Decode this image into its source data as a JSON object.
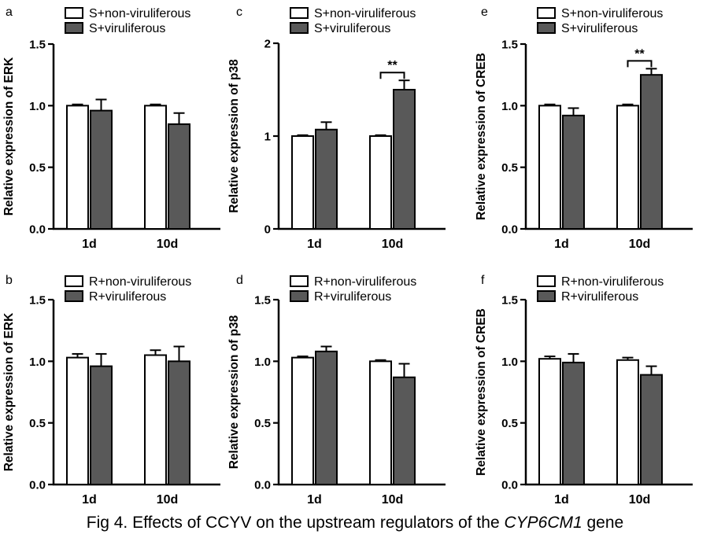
{
  "caption": {
    "prefix": "Fig 4. Effects of CCYV on the upstream regulators of the ",
    "gene": "CYP6CM1",
    "suffix": " gene"
  },
  "colors": {
    "white_bar": "#ffffff",
    "dark_bar": "#595959",
    "axis": "#000000"
  },
  "chart_data": [
    {
      "panel": "a",
      "type": "bar",
      "ylabel": "Relative expression of ERK",
      "ylim": [
        0,
        1.5
      ],
      "yticks": [
        "0.0",
        "0.5",
        "1.0",
        "1.5"
      ],
      "ytick_values": [
        0,
        0.5,
        1.0,
        1.5
      ],
      "categories": [
        "1d",
        "10d"
      ],
      "series": [
        {
          "name": "S+non-viruliferous",
          "style": "white",
          "values": [
            1.0,
            1.0
          ],
          "errors": [
            0.01,
            0.01
          ]
        },
        {
          "name": "S+viruliferous",
          "style": "dark",
          "values": [
            0.96,
            0.85
          ],
          "errors": [
            0.09,
            0.09
          ]
        }
      ],
      "significance": []
    },
    {
      "panel": "c",
      "type": "bar",
      "ylabel": "Relative expression of p38",
      "ylim": [
        0,
        2
      ],
      "yticks": [
        "0",
        "1",
        "2"
      ],
      "ytick_values": [
        0,
        1,
        2
      ],
      "categories": [
        "1d",
        "10d"
      ],
      "series": [
        {
          "name": "S+non-viruliferous",
          "style": "white",
          "values": [
            1.0,
            1.0
          ],
          "errors": [
            0.01,
            0.01
          ]
        },
        {
          "name": "S+viruliferous",
          "style": "dark",
          "values": [
            1.07,
            1.5
          ],
          "errors": [
            0.08,
            0.1
          ]
        }
      ],
      "significance": [
        {
          "category": "10d",
          "label": "**"
        }
      ]
    },
    {
      "panel": "e",
      "type": "bar",
      "ylabel": "Relative expression of CREB",
      "ylim": [
        0,
        1.5
      ],
      "yticks": [
        "0.0",
        "0.5",
        "1.0",
        "1.5"
      ],
      "ytick_values": [
        0,
        0.5,
        1.0,
        1.5
      ],
      "categories": [
        "1d",
        "10d"
      ],
      "series": [
        {
          "name": "S+non-viruliferous",
          "style": "white",
          "values": [
            1.0,
            1.0
          ],
          "errors": [
            0.01,
            0.01
          ]
        },
        {
          "name": "S+viruliferous",
          "style": "dark",
          "values": [
            0.92,
            1.25
          ],
          "errors": [
            0.06,
            0.05
          ]
        }
      ],
      "significance": [
        {
          "category": "10d",
          "label": "**"
        }
      ]
    },
    {
      "panel": "b",
      "type": "bar",
      "ylabel": "Relative expression of ERK",
      "ylim": [
        0,
        1.5
      ],
      "yticks": [
        "0.0",
        "0.5",
        "1.0",
        "1.5"
      ],
      "ytick_values": [
        0,
        0.5,
        1.0,
        1.5
      ],
      "categories": [
        "1d",
        "10d"
      ],
      "series": [
        {
          "name": "R+non-viruliferous",
          "style": "white",
          "values": [
            1.03,
            1.05
          ],
          "errors": [
            0.03,
            0.04
          ]
        },
        {
          "name": "R+viruliferous",
          "style": "dark",
          "values": [
            0.96,
            1.0
          ],
          "errors": [
            0.1,
            0.12
          ]
        }
      ],
      "significance": []
    },
    {
      "panel": "d",
      "type": "bar",
      "ylabel": "Relative expression of p38",
      "ylim": [
        0,
        1.5
      ],
      "yticks": [
        "0.0",
        "0.5",
        "1.0",
        "1.5"
      ],
      "ytick_values": [
        0,
        0.5,
        1.0,
        1.5
      ],
      "categories": [
        "1d",
        "10d"
      ],
      "series": [
        {
          "name": "R+non-viruliferous",
          "style": "white",
          "values": [
            1.03,
            1.0
          ],
          "errors": [
            0.01,
            0.01
          ]
        },
        {
          "name": "R+viruliferous",
          "style": "dark",
          "values": [
            1.08,
            0.87
          ],
          "errors": [
            0.04,
            0.11
          ]
        }
      ],
      "significance": []
    },
    {
      "panel": "f",
      "type": "bar",
      "ylabel": "Relative expression of CREB",
      "ylim": [
        0,
        1.5
      ],
      "yticks": [
        "0.0",
        "0.5",
        "1.0",
        "1.5"
      ],
      "ytick_values": [
        0,
        0.5,
        1.0,
        1.5
      ],
      "categories": [
        "1d",
        "10d"
      ],
      "series": [
        {
          "name": "R+non-viruliferous",
          "style": "white",
          "values": [
            1.02,
            1.01
          ],
          "errors": [
            0.02,
            0.02
          ]
        },
        {
          "name": "R+viruliferous",
          "style": "dark",
          "values": [
            0.99,
            0.89
          ],
          "errors": [
            0.07,
            0.07
          ]
        }
      ],
      "significance": []
    }
  ]
}
